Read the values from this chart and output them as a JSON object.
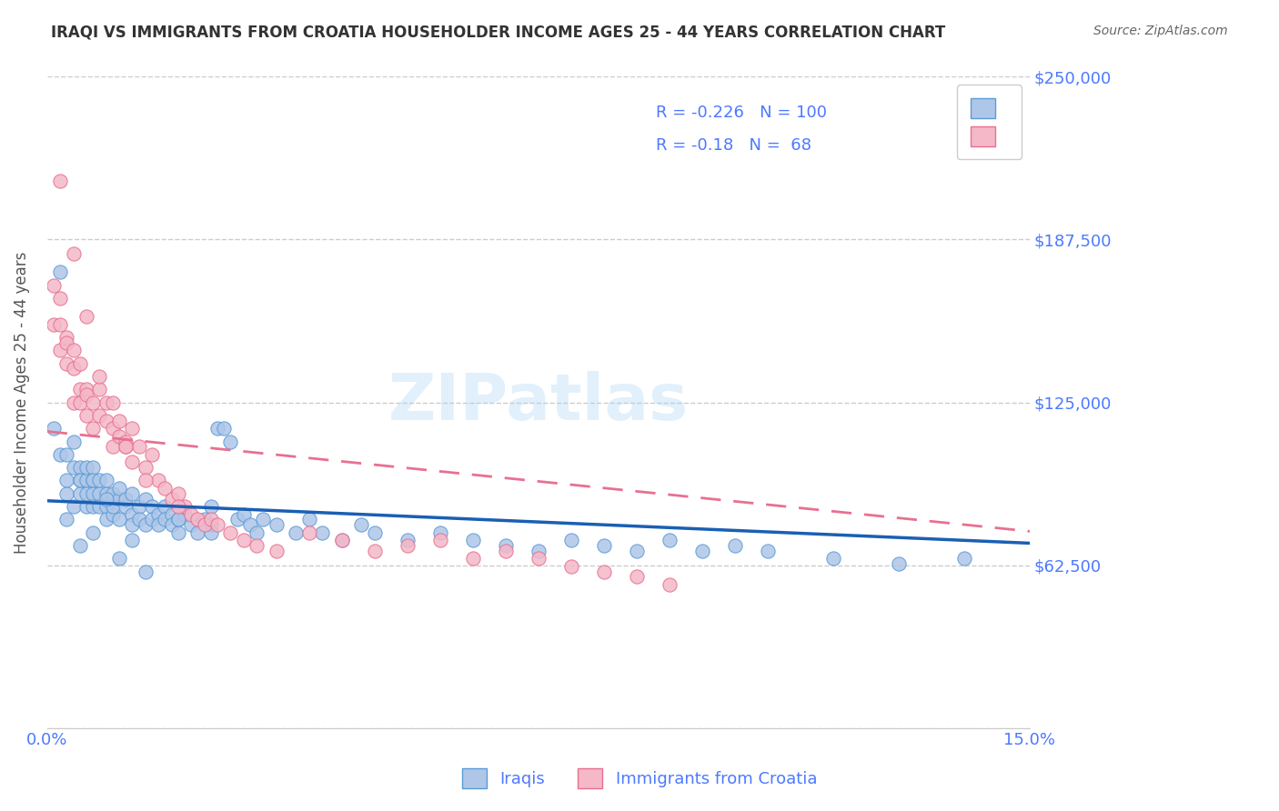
{
  "title": "IRAQI VS IMMIGRANTS FROM CROATIA HOUSEHOLDER INCOME AGES 25 - 44 YEARS CORRELATION CHART",
  "source": "Source: ZipAtlas.com",
  "xlabel": "",
  "ylabel": "Householder Income Ages 25 - 44 years",
  "xlim": [
    0.0,
    0.15
  ],
  "ylim": [
    0,
    250000
  ],
  "yticks": [
    0,
    62500,
    125000,
    187500,
    250000
  ],
  "ytick_labels": [
    "",
    "$62,500",
    "$125,000",
    "$187,500",
    "$250,000"
  ],
  "xticks": [
    0.0,
    0.03,
    0.06,
    0.09,
    0.12,
    0.15
  ],
  "xtick_labels": [
    "0.0%",
    "",
    "",
    "",
    "",
    "15.0%"
  ],
  "grid_color": "#cccccc",
  "background_color": "#ffffff",
  "accent_color": "#4d79ff",
  "iraqi_color": "#aec6e8",
  "iraqi_edge_color": "#5b9bd5",
  "croatia_color": "#f4b8c8",
  "croatia_edge_color": "#e87090",
  "iraqi_R": -0.226,
  "iraqi_N": 100,
  "croatia_R": -0.18,
  "croatia_N": 68,
  "legend_label_iraqi": "Iraqis",
  "legend_label_croatia": "Immigrants from Croatia",
  "watermark": "ZIPatlas",
  "iraqi_scatter_x": [
    0.001,
    0.002,
    0.002,
    0.003,
    0.003,
    0.003,
    0.004,
    0.004,
    0.004,
    0.005,
    0.005,
    0.005,
    0.005,
    0.006,
    0.006,
    0.006,
    0.006,
    0.007,
    0.007,
    0.007,
    0.007,
    0.007,
    0.008,
    0.008,
    0.008,
    0.009,
    0.009,
    0.009,
    0.009,
    0.01,
    0.01,
    0.01,
    0.01,
    0.011,
    0.011,
    0.011,
    0.012,
    0.012,
    0.013,
    0.013,
    0.013,
    0.014,
    0.014,
    0.015,
    0.015,
    0.016,
    0.016,
    0.017,
    0.017,
    0.018,
    0.018,
    0.019,
    0.019,
    0.02,
    0.02,
    0.021,
    0.022,
    0.023,
    0.024,
    0.025,
    0.025,
    0.026,
    0.027,
    0.028,
    0.029,
    0.03,
    0.031,
    0.032,
    0.033,
    0.035,
    0.038,
    0.04,
    0.042,
    0.045,
    0.048,
    0.05,
    0.055,
    0.06,
    0.065,
    0.07,
    0.075,
    0.08,
    0.085,
    0.09,
    0.095,
    0.1,
    0.105,
    0.11,
    0.12,
    0.13,
    0.003,
    0.005,
    0.007,
    0.009,
    0.011,
    0.013,
    0.015,
    0.02,
    0.025,
    0.14
  ],
  "iraqi_scatter_y": [
    115000,
    175000,
    105000,
    90000,
    105000,
    95000,
    100000,
    110000,
    85000,
    95000,
    100000,
    90000,
    95000,
    95000,
    100000,
    85000,
    90000,
    95000,
    90000,
    85000,
    100000,
    95000,
    90000,
    95000,
    85000,
    90000,
    85000,
    80000,
    95000,
    88000,
    82000,
    90000,
    85000,
    88000,
    80000,
    92000,
    85000,
    88000,
    82000,
    78000,
    90000,
    85000,
    80000,
    88000,
    78000,
    85000,
    80000,
    82000,
    78000,
    85000,
    80000,
    82000,
    78000,
    80000,
    75000,
    82000,
    78000,
    75000,
    80000,
    85000,
    78000,
    115000,
    115000,
    110000,
    80000,
    82000,
    78000,
    75000,
    80000,
    78000,
    75000,
    80000,
    75000,
    72000,
    78000,
    75000,
    72000,
    75000,
    72000,
    70000,
    68000,
    72000,
    70000,
    68000,
    72000,
    68000,
    70000,
    68000,
    65000,
    63000,
    80000,
    70000,
    75000,
    88000,
    65000,
    72000,
    60000,
    80000,
    75000,
    65000
  ],
  "croatia_scatter_x": [
    0.001,
    0.001,
    0.002,
    0.002,
    0.002,
    0.003,
    0.003,
    0.003,
    0.004,
    0.004,
    0.004,
    0.005,
    0.005,
    0.005,
    0.006,
    0.006,
    0.006,
    0.007,
    0.007,
    0.008,
    0.008,
    0.009,
    0.009,
    0.01,
    0.01,
    0.011,
    0.011,
    0.012,
    0.012,
    0.013,
    0.013,
    0.014,
    0.015,
    0.016,
    0.017,
    0.018,
    0.019,
    0.02,
    0.021,
    0.022,
    0.023,
    0.024,
    0.025,
    0.026,
    0.028,
    0.03,
    0.032,
    0.035,
    0.04,
    0.045,
    0.05,
    0.055,
    0.06,
    0.065,
    0.07,
    0.075,
    0.08,
    0.085,
    0.09,
    0.095,
    0.002,
    0.004,
    0.006,
    0.008,
    0.01,
    0.012,
    0.015,
    0.02
  ],
  "croatia_scatter_y": [
    170000,
    155000,
    165000,
    155000,
    145000,
    150000,
    148000,
    140000,
    145000,
    138000,
    125000,
    130000,
    125000,
    140000,
    130000,
    120000,
    128000,
    115000,
    125000,
    120000,
    130000,
    118000,
    125000,
    115000,
    108000,
    112000,
    118000,
    110000,
    108000,
    102000,
    115000,
    108000,
    100000,
    105000,
    95000,
    92000,
    88000,
    90000,
    85000,
    82000,
    80000,
    78000,
    80000,
    78000,
    75000,
    72000,
    70000,
    68000,
    75000,
    72000,
    68000,
    70000,
    72000,
    65000,
    68000,
    65000,
    62000,
    60000,
    58000,
    55000,
    210000,
    182000,
    158000,
    135000,
    125000,
    108000,
    95000,
    85000
  ]
}
